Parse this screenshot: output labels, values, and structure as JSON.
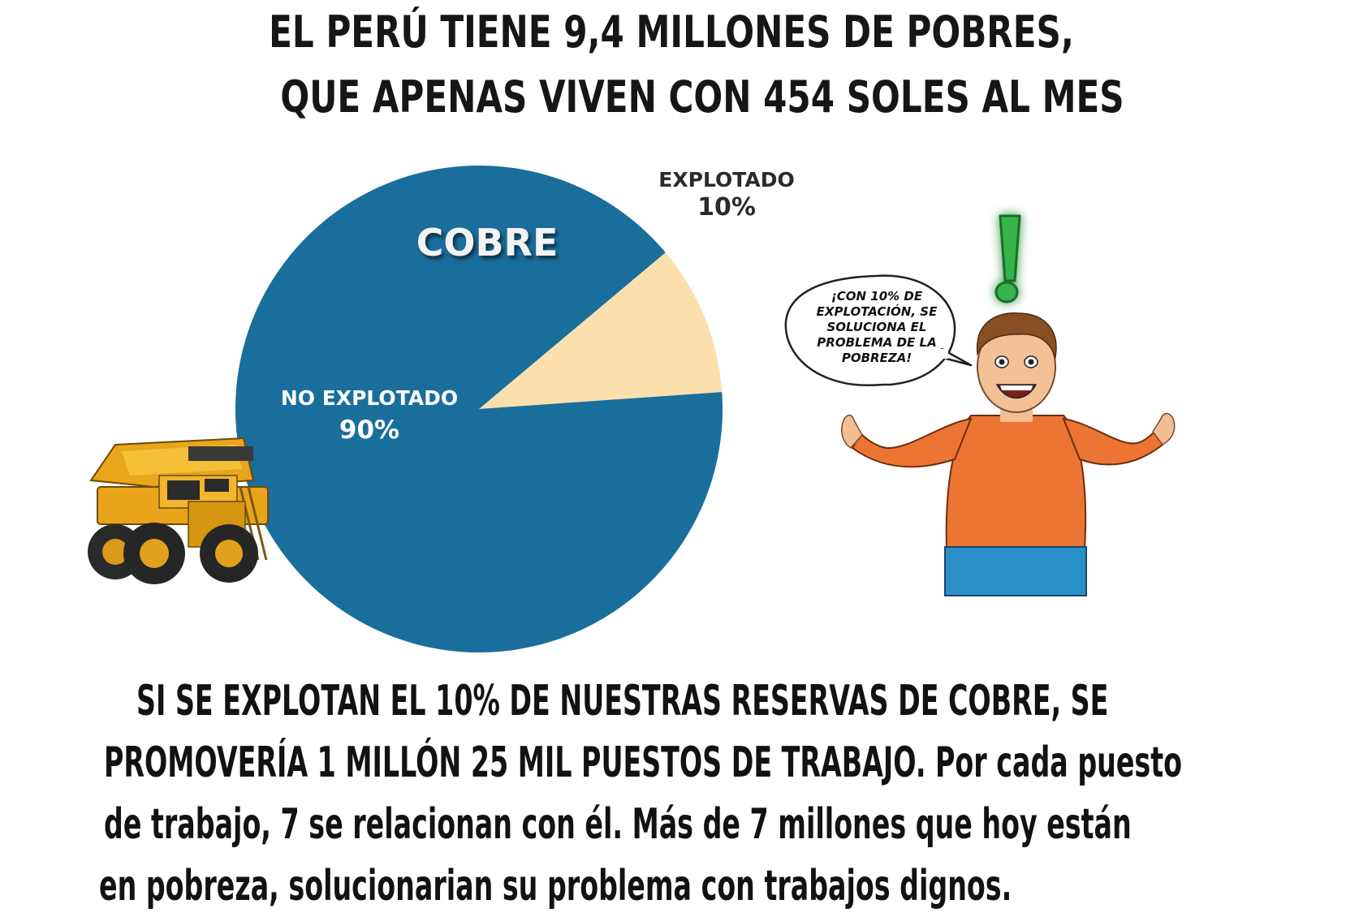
{
  "headline": {
    "line1": "EL PERÚ TIENE 9,4 MILLONES DE POBRES,",
    "line2": "QUE APENAS VIVEN CON 454 SOLES AL MES"
  },
  "chart_data": {
    "type": "pie",
    "title": "COBRE",
    "slices": [
      {
        "name": "NO EXPLOTADO",
        "value": 90,
        "label": "90%",
        "color": "#1a6e9c"
      },
      {
        "name": "EXPLOTADO",
        "value": 10,
        "label": "10%",
        "color": "#fbe0ad"
      }
    ]
  },
  "speech_bubble": {
    "lines": [
      "¡CON 10% DE",
      "EXPLOTACIÓN, SE",
      "SOLUCIONA EL",
      "PROBLEMA DE LA",
      "POBREZA!"
    ]
  },
  "bottom_text": {
    "line1": "SI SE EXPLOTAN EL 10% DE NUESTRAS RESERVAS DE COBRE, SE",
    "line2": "PROMOVERÍA 1 MILLÓN 25 MIL PUESTOS DE TRABAJO. Por cada puesto",
    "line3": "de trabajo, 7 se relacionan con él. Más de 7 millones que hoy están",
    "line4": "en pobreza, solucionarian su problema con trabajos dignos."
  },
  "icons": {
    "truck": "mining-dump-truck-icon",
    "person": "excited-man-icon",
    "exclamation": "exclamation-icon"
  }
}
